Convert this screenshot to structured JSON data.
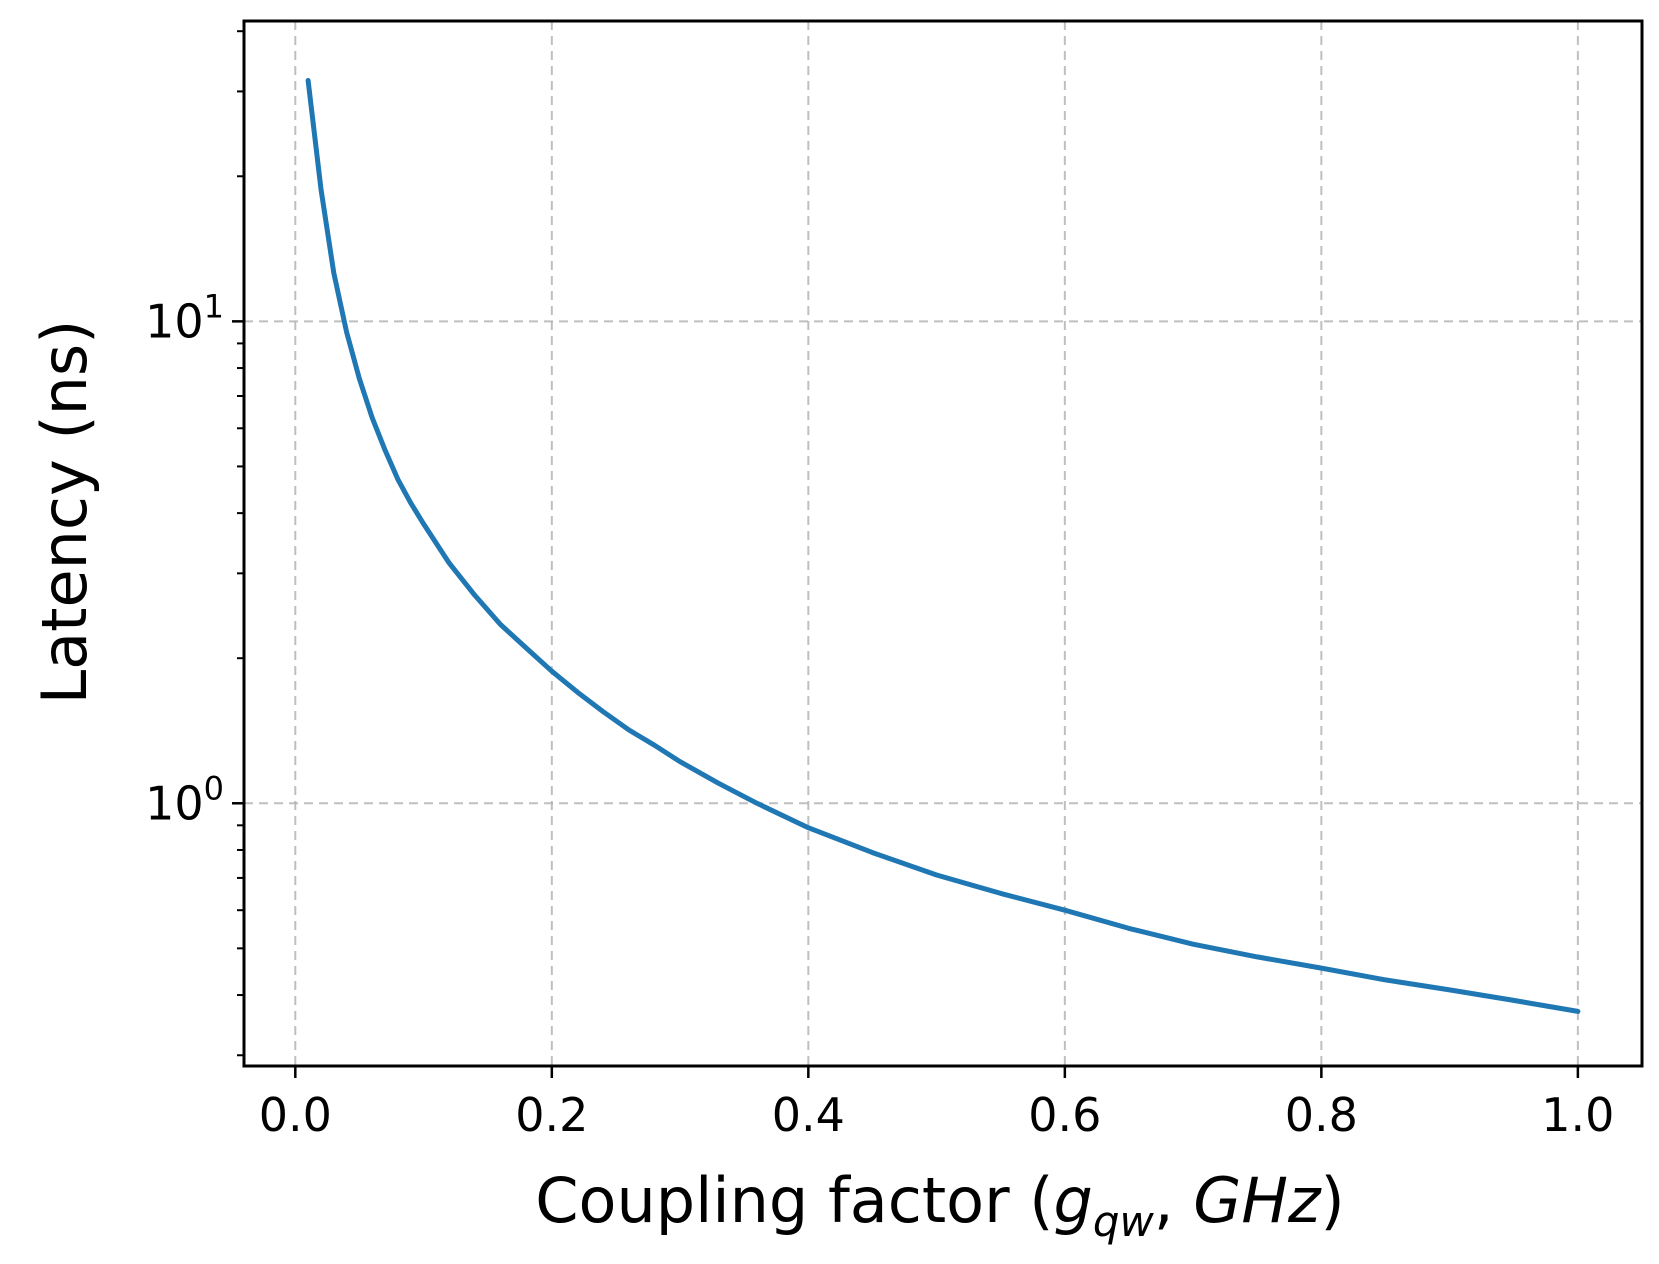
{
  "chart_data": {
    "type": "line",
    "title": "",
    "xlabel": {
      "prefix": "Coupling factor (",
      "g": "g",
      "sub": "qw",
      "mid": ", ",
      "unit": "GHz",
      "suffix": ")"
    },
    "ylabel": "Latency (ns)",
    "xlim": [
      -0.04,
      1.05
    ],
    "ylim": [
      0.285,
      42
    ],
    "yscale": "log",
    "grid": true,
    "x_ticks": [
      {
        "value": 0.0,
        "label": "0.0"
      },
      {
        "value": 0.2,
        "label": "0.2"
      },
      {
        "value": 0.4,
        "label": "0.4"
      },
      {
        "value": 0.6,
        "label": "0.6"
      },
      {
        "value": 0.8,
        "label": "0.8"
      },
      {
        "value": 1.0,
        "label": "1.0"
      }
    ],
    "y_ticks": [
      {
        "value": 1,
        "base": "10",
        "exp": "0"
      },
      {
        "value": 10,
        "base": "10",
        "exp": "1"
      }
    ],
    "series": [
      {
        "color": "#1f77b4",
        "x": [
          0.01,
          0.02,
          0.03,
          0.04,
          0.05,
          0.06,
          0.07,
          0.08,
          0.09,
          0.1,
          0.12,
          0.14,
          0.16,
          0.18,
          0.2,
          0.22,
          0.24,
          0.26,
          0.28,
          0.3,
          0.33,
          0.36,
          0.4,
          0.45,
          0.5,
          0.55,
          0.6,
          0.65,
          0.7,
          0.75,
          0.8,
          0.85,
          0.9,
          0.95,
          1.0
        ],
        "y": [
          31.6,
          18.8,
          12.6,
          9.5,
          7.6,
          6.3,
          5.4,
          4.7,
          4.2,
          3.8,
          3.15,
          2.7,
          2.35,
          2.1,
          1.88,
          1.7,
          1.55,
          1.42,
          1.32,
          1.22,
          1.1,
          1.0,
          0.89,
          0.79,
          0.71,
          0.65,
          0.6,
          0.55,
          0.51,
          0.48,
          0.455,
          0.43,
          0.41,
          0.39,
          0.37
        ]
      }
    ]
  }
}
